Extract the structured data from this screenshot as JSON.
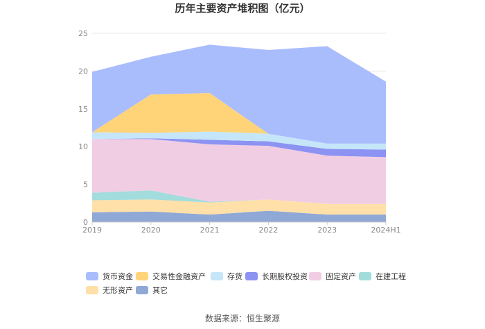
{
  "chart_data": {
    "type": "area",
    "stacked": true,
    "title": "历年主要资产堆积图（亿元）",
    "x": [
      "2019",
      "2020",
      "2021",
      "2022",
      "2023",
      "2024H1"
    ],
    "ylim": [
      0,
      25
    ],
    "yticks": [
      "0",
      "5",
      "10",
      "15",
      "20",
      "25"
    ],
    "grid": true,
    "legend_position": "bottom",
    "series": [
      {
        "name": "其它",
        "color": "#8fa8d6",
        "values": [
          1.3,
          1.4,
          1.0,
          1.5,
          1.0,
          1.0
        ]
      },
      {
        "name": "无形资产",
        "color": "#ffe0a8",
        "values": [
          1.6,
          1.6,
          1.6,
          1.5,
          1.4,
          1.4
        ]
      },
      {
        "name": "在建工程",
        "color": "#a2dcdc",
        "values": [
          1.0,
          1.2,
          0.1,
          0.0,
          0.0,
          0.0
        ]
      },
      {
        "name": "固定资产",
        "color": "#f1cde4",
        "values": [
          7.1,
          6.8,
          7.6,
          7.1,
          6.4,
          6.2
        ]
      },
      {
        "name": "长期股权投资",
        "color": "#8c93f2",
        "values": [
          0.0,
          0.1,
          0.6,
          0.6,
          0.9,
          1.0
        ]
      },
      {
        "name": "存货",
        "color": "#c5e6f9",
        "values": [
          0.9,
          0.7,
          1.1,
          1.0,
          0.7,
          0.8
        ]
      },
      {
        "name": "交易性金融资产",
        "color": "#ffd479",
        "values": [
          0.0,
          5.1,
          5.1,
          0.0,
          0.0,
          0.0
        ]
      },
      {
        "name": "货币资金",
        "color": "#a9bdfd",
        "values": [
          8.0,
          5.0,
          6.4,
          11.1,
          12.9,
          8.2
        ]
      }
    ],
    "legend_order": [
      "货币资金",
      "交易性金融资产",
      "存货",
      "长期股权投资",
      "固定资产",
      "在建工程",
      "无形资产",
      "其它"
    ],
    "source": "数据来源：恒生聚源"
  }
}
